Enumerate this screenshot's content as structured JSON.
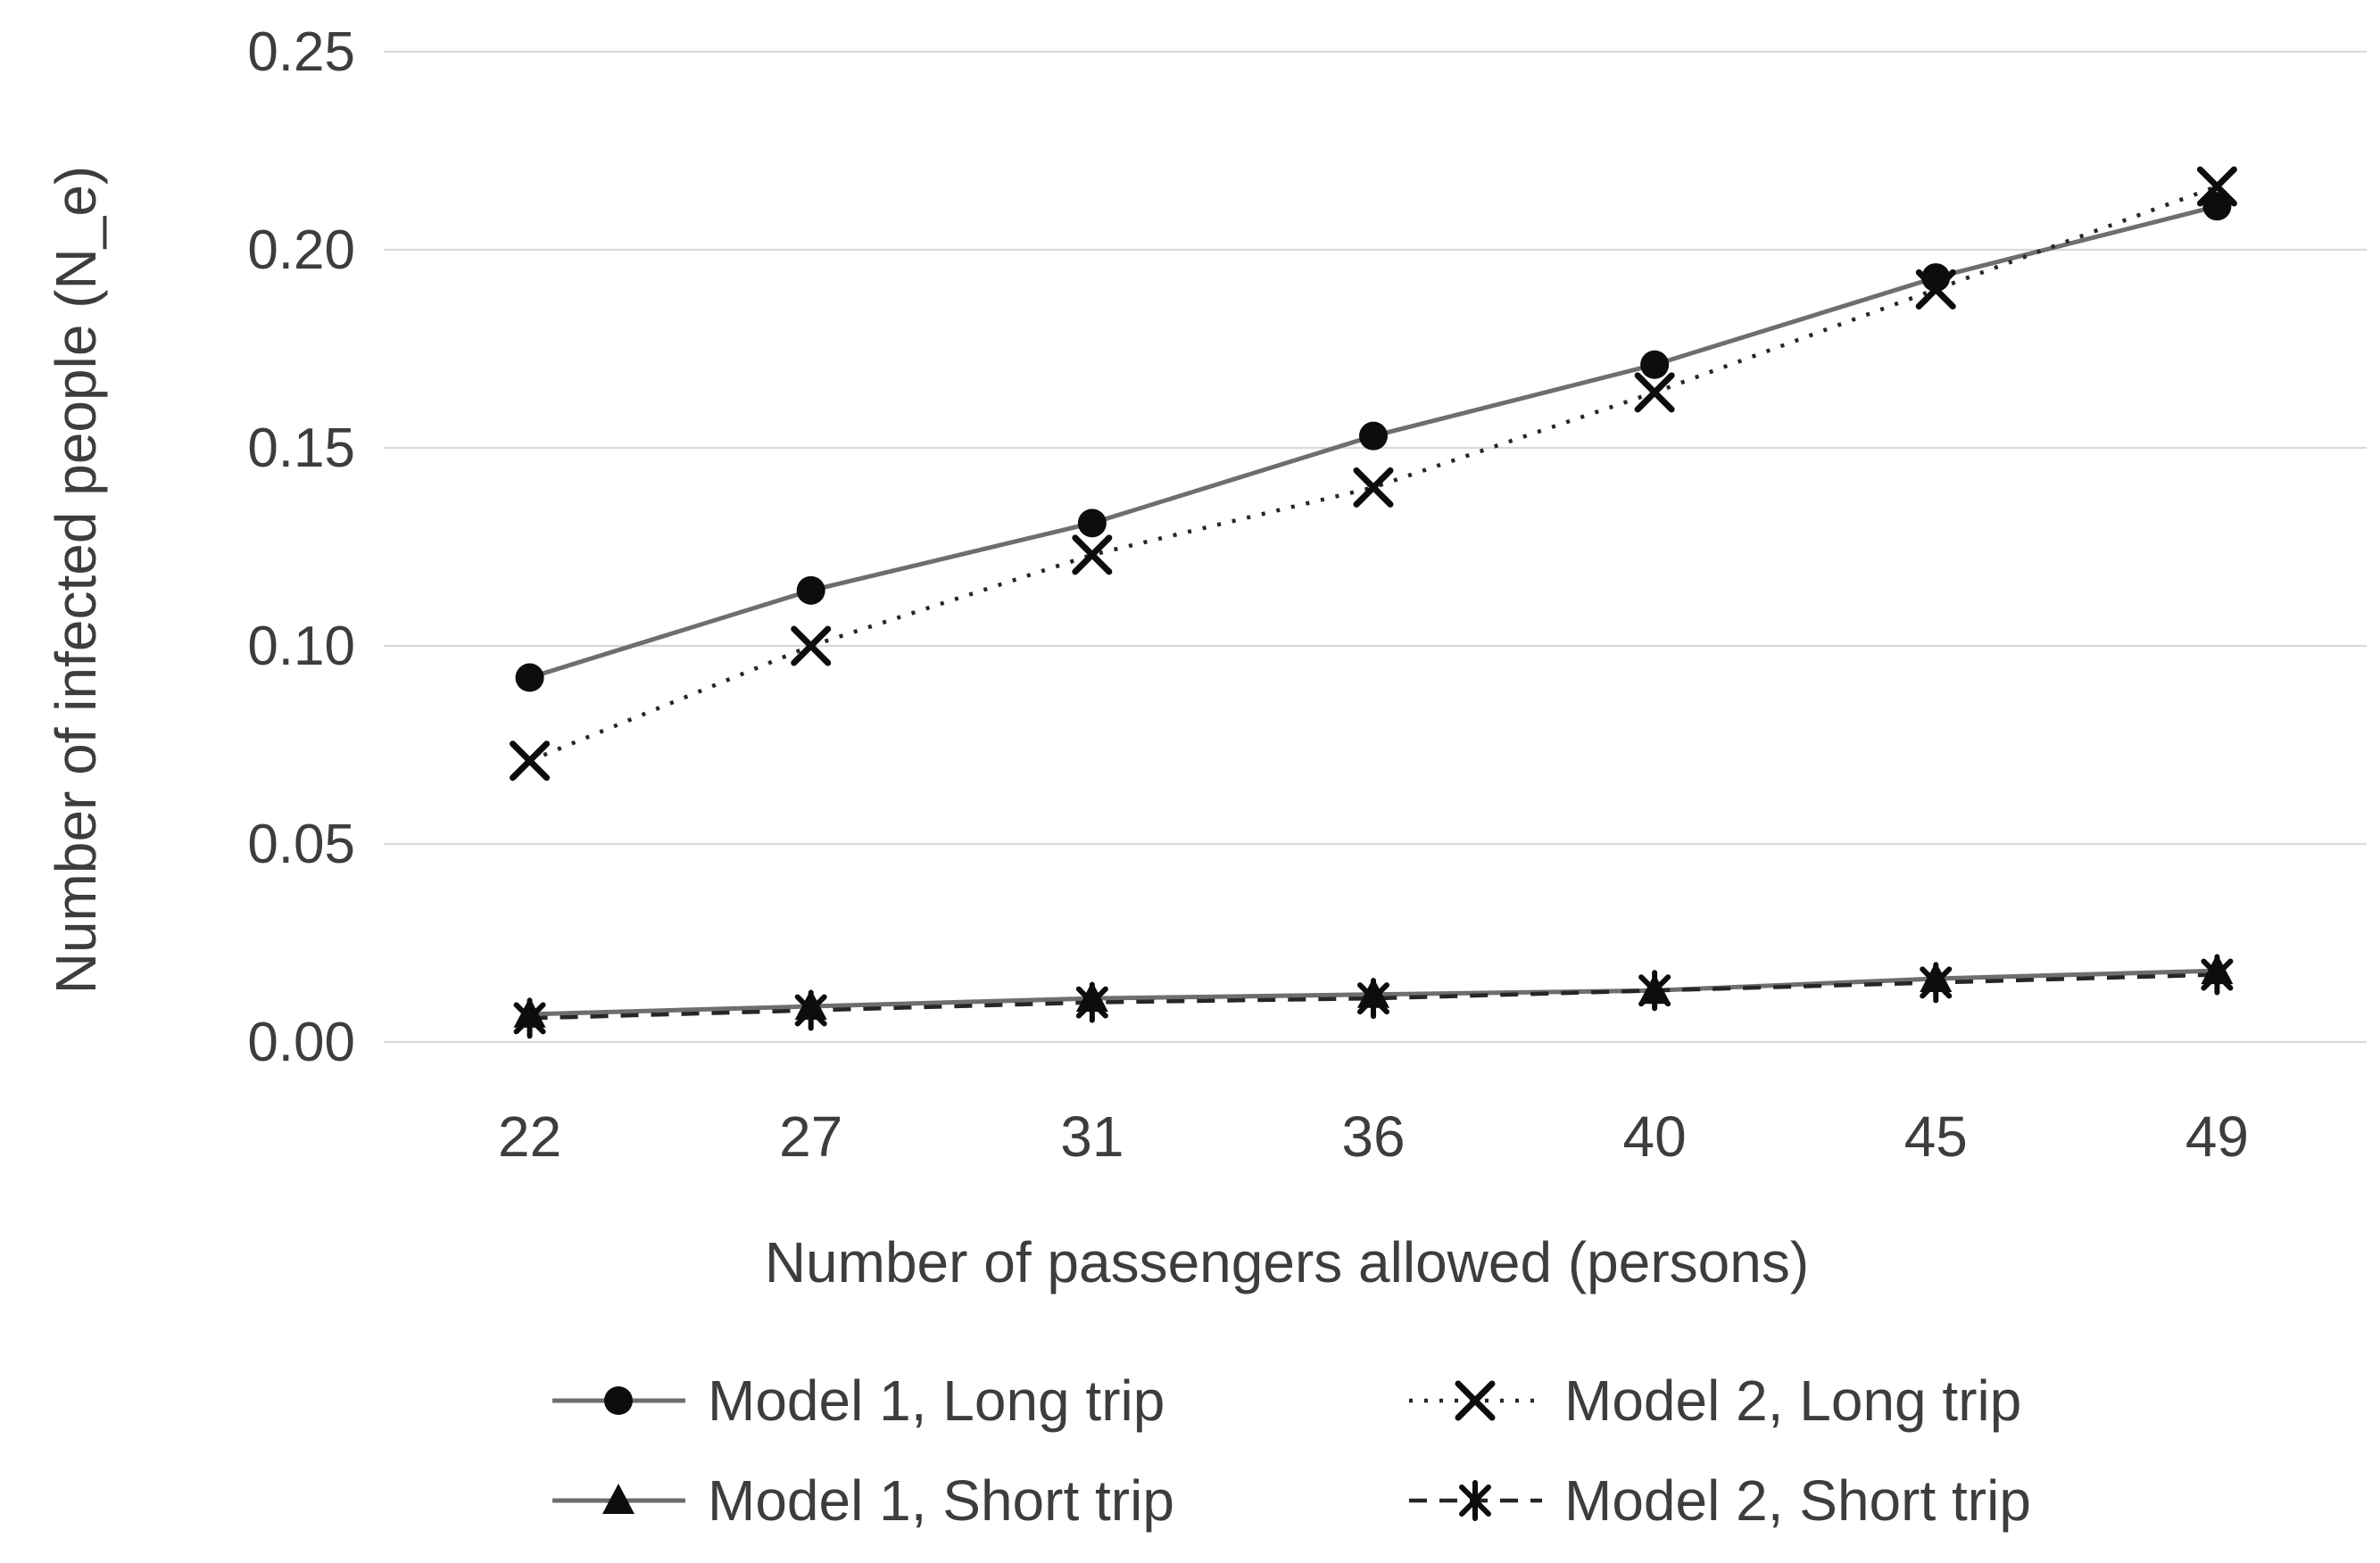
{
  "figure": {
    "background": "#ffffff"
  },
  "chart_data": {
    "type": "line",
    "xlabel": "Number of passengers allowed (persons)",
    "ylabel": "Number of infected people (N_e)",
    "categories": [
      "22",
      "27",
      "31",
      "36",
      "40",
      "45",
      "49"
    ],
    "ylim": [
      0,
      0.25
    ],
    "yticks": [
      {
        "value": 0.0,
        "label": "0.00"
      },
      {
        "value": 0.05,
        "label": "0.05"
      },
      {
        "value": 0.1,
        "label": "0.10"
      },
      {
        "value": 0.15,
        "label": "0.15"
      },
      {
        "value": 0.2,
        "label": "0.20"
      },
      {
        "value": 0.25,
        "label": "0.25"
      }
    ],
    "grid": "horizontal-only",
    "grid_color": "#d9d9d9",
    "text_color": "#3d3d3d",
    "legend_position": "bottom",
    "series": [
      {
        "name": "Model 1, Long trip",
        "marker": "circle",
        "line": "solid",
        "color": "#6e6e6e",
        "marker_color": "#0d0d0d",
        "values": [
          0.092,
          0.114,
          0.131,
          0.153,
          0.171,
          0.193,
          0.211
        ]
      },
      {
        "name": "Model 2, Long trip",
        "marker": "x",
        "line": "dotted",
        "color": "#262626",
        "marker_color": "#0d0d0d",
        "values": [
          0.071,
          0.1,
          0.123,
          0.14,
          0.164,
          0.19,
          0.216
        ]
      },
      {
        "name": "Model 1, Short trip",
        "marker": "triangle",
        "line": "solid",
        "color": "#6e6e6e",
        "marker_color": "#0d0d0d",
        "values": [
          0.007,
          0.009,
          0.011,
          0.012,
          0.013,
          0.016,
          0.018
        ]
      },
      {
        "name": "Model 2, Short trip",
        "marker": "star",
        "line": "dashed",
        "color": "#262626",
        "marker_color": "#0d0d0d",
        "values": [
          0.006,
          0.008,
          0.01,
          0.011,
          0.013,
          0.015,
          0.017
        ]
      }
    ]
  }
}
